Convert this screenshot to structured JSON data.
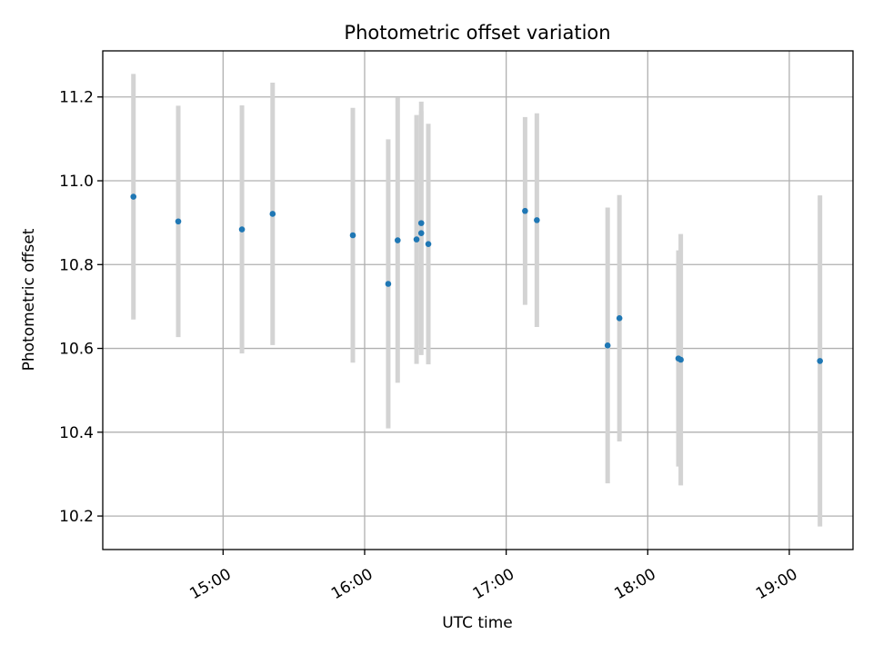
{
  "chart_data": {
    "type": "scatter",
    "title": "Photometric offset variation",
    "xlabel": "UTC time",
    "ylabel": "Photometric offset",
    "x_unit": "UTC time (hours)",
    "xlim": [
      "14:09",
      "19:27"
    ],
    "ylim": [
      10.12,
      11.31
    ],
    "x_ticks": [
      {
        "value": "15:00",
        "label": "15:00"
      },
      {
        "value": "16:00",
        "label": "16:00"
      },
      {
        "value": "17:00",
        "label": "17:00"
      },
      {
        "value": "18:00",
        "label": "18:00"
      },
      {
        "value": "19:00",
        "label": "19:00"
      }
    ],
    "y_ticks": [
      {
        "value": 10.2,
        "label": "10.2"
      },
      {
        "value": 10.4,
        "label": "10.4"
      },
      {
        "value": 10.6,
        "label": "10.6"
      },
      {
        "value": 10.8,
        "label": "10.8"
      },
      {
        "value": 11.0,
        "label": "11.0"
      },
      {
        "value": 11.2,
        "label": "11.2"
      }
    ],
    "grid": true,
    "marker_color": "#1f77b4",
    "errorbar_color": "#d3d3d3",
    "points": [
      {
        "x": "14:22",
        "y": 10.962,
        "err": 0.293
      },
      {
        "x": "14:41",
        "y": 10.903,
        "err": 0.276
      },
      {
        "x": "15:08",
        "y": 10.884,
        "err": 0.296
      },
      {
        "x": "15:21",
        "y": 10.921,
        "err": 0.313
      },
      {
        "x": "15:55",
        "y": 10.87,
        "err": 0.304
      },
      {
        "x": "16:10",
        "y": 10.754,
        "err": 0.345
      },
      {
        "x": "16:14",
        "y": 10.858,
        "err": 0.34
      },
      {
        "x": "16:22",
        "y": 10.86,
        "err": 0.297
      },
      {
        "x": "16:24",
        "y": 10.899,
        "err": 0.29
      },
      {
        "x": "16:24",
        "y": 10.875,
        "err": 0.291
      },
      {
        "x": "16:27",
        "y": 10.849,
        "err": 0.287
      },
      {
        "x": "17:08",
        "y": 10.928,
        "err": 0.224
      },
      {
        "x": "17:13",
        "y": 10.906,
        "err": 0.255
      },
      {
        "x": "17:43",
        "y": 10.607,
        "err": 0.329
      },
      {
        "x": "17:48",
        "y": 10.672,
        "err": 0.294
      },
      {
        "x": "18:13",
        "y": 10.576,
        "err": 0.258
      },
      {
        "x": "18:14",
        "y": 10.573,
        "err": 0.3
      },
      {
        "x": "19:13",
        "y": 10.57,
        "err": 0.395
      }
    ]
  }
}
